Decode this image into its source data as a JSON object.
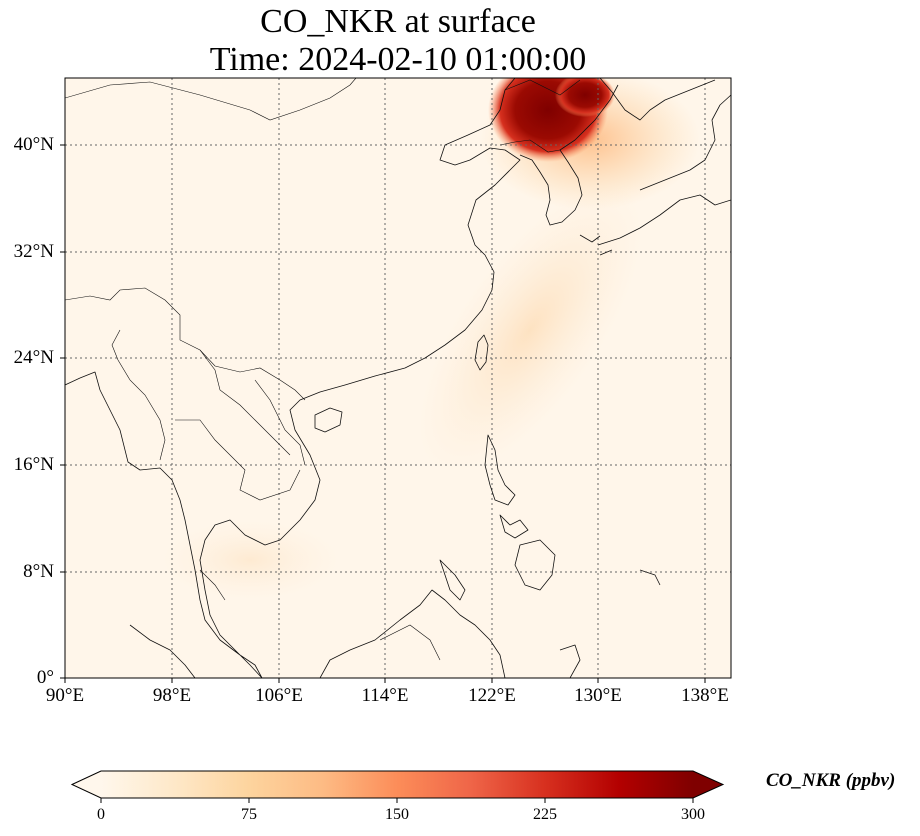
{
  "title": {
    "line1": "CO_NKR at surface",
    "line2": "Time: 2024-02-10 01:00:00"
  },
  "map": {
    "lat_ticks": [
      "0°",
      "8°N",
      "16°N",
      "24°N",
      "32°N",
      "40°N"
    ],
    "lon_ticks": [
      "90°E",
      "98°E",
      "106°E",
      "114°E",
      "122°E",
      "130°E",
      "138°E"
    ],
    "extent": {
      "lon": [
        90,
        140
      ],
      "lat": [
        0,
        45
      ]
    },
    "gridlines": true,
    "gridline_style": "dotted"
  },
  "colorbar": {
    "label": "CO_NKR (ppbv)",
    "ticks": [
      "0",
      "75",
      "150",
      "225",
      "300"
    ],
    "range": [
      0,
      300
    ],
    "extend": "both",
    "colormap": "OrRd",
    "colors": [
      "#fff7ec",
      "#fee8c8",
      "#fdd49e",
      "#fdbb84",
      "#fc8d59",
      "#ef6548",
      "#d7301f",
      "#b30000",
      "#7f0000"
    ]
  }
}
